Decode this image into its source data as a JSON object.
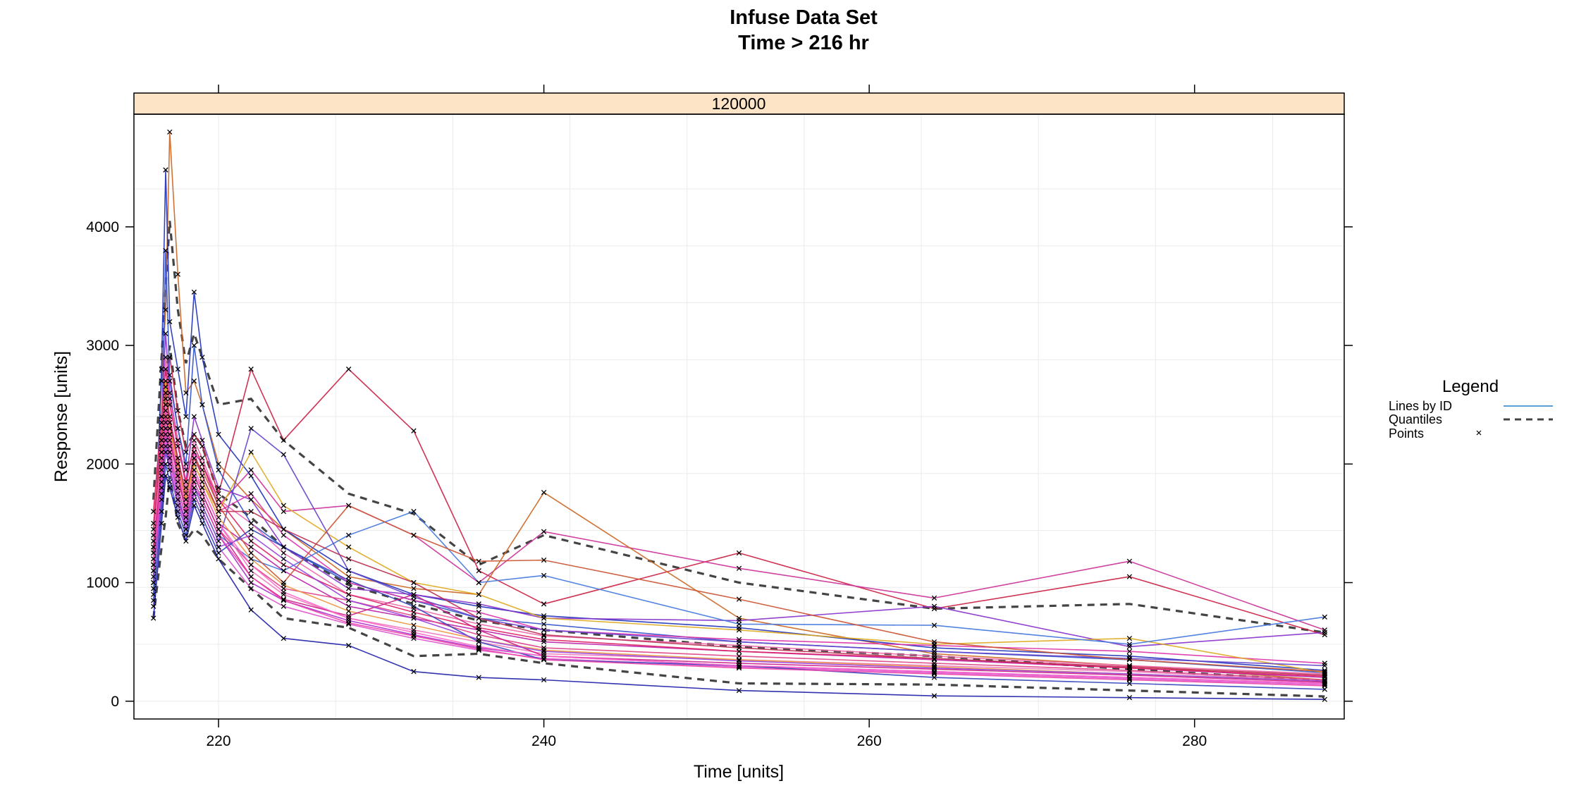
{
  "chart_data": {
    "type": "line",
    "title": "Infuse Data Set",
    "subtitle": "Time > 216 hr",
    "xlabel": "Time [units]",
    "ylabel": "Response [units]",
    "panel_label": "120000",
    "xlim": [
      214.8,
      289.2
    ],
    "ylim": [
      -150,
      4950
    ],
    "x_ticks": [
      220,
      240,
      260,
      280
    ],
    "y_ticks": [
      0,
      1000,
      2000,
      3000,
      4000
    ],
    "grid": true,
    "grid_x": [
      220,
      227.2,
      234.4,
      241.6,
      248.8,
      256,
      263.2,
      270.4,
      277.6,
      284.8
    ],
    "grid_y": [
      0,
      480,
      960,
      1440,
      1920,
      2400,
      2880,
      3360,
      3840,
      4320
    ],
    "legend": {
      "title": "Legend",
      "position": "right",
      "items": [
        {
          "label": "Lines by ID",
          "style": "line",
          "color": "#5aa0d8"
        },
        {
          "label": "Quantiles",
          "style": "dashed",
          "color": "#444444"
        },
        {
          "label": "Points",
          "style": "x",
          "color": "#000000"
        }
      ]
    },
    "x": [
      216,
      216.5,
      216.75,
      217,
      217.5,
      218,
      218.5,
      219,
      220,
      222,
      224,
      228,
      232,
      236,
      240,
      252,
      264,
      276,
      288
    ],
    "quantiles": [
      {
        "name": "upper",
        "values": [
          1700,
          2900,
          3500,
          4050,
          3300,
          2850,
          3100,
          2900,
          2500,
          2550,
          2200,
          1750,
          1580,
          1150,
          1400,
          1000,
          780,
          820,
          580
        ]
      },
      {
        "name": "median",
        "values": [
          1250,
          2300,
          2700,
          3000,
          2450,
          2150,
          2250,
          2150,
          1750,
          1550,
          1300,
          980,
          820,
          680,
          600,
          460,
          380,
          270,
          170
        ]
      },
      {
        "name": "lower",
        "values": [
          700,
          1300,
          1550,
          1900,
          1500,
          1350,
          1450,
          1400,
          1200,
          950,
          700,
          620,
          380,
          400,
          320,
          150,
          140,
          90,
          40
        ]
      }
    ],
    "series": [
      {
        "color": "#cc2244",
        "values": [
          1400,
          2300,
          2600,
          2900,
          2450,
          2100,
          2250,
          2150,
          1750,
          2800,
          2200,
          2800,
          2280,
          1100,
          820,
          1250,
          780,
          1050,
          560
        ]
      },
      {
        "color": "#cc3399",
        "values": [
          1300,
          2100,
          2500,
          2750,
          2300,
          1950,
          2100,
          2000,
          1650,
          1950,
          1600,
          1650,
          1400,
          1000,
          1430,
          1120,
          870,
          1180,
          600
        ]
      },
      {
        "color": "#cc6622",
        "values": [
          1150,
          2700,
          3300,
          4800,
          3600,
          2600,
          2700,
          2500,
          2000,
          1700,
          1450,
          1050,
          950,
          900,
          1760,
          700,
          400,
          300,
          180
        ]
      },
      {
        "color": "#2233bb",
        "values": [
          1000,
          2800,
          4480,
          3200,
          2800,
          2400,
          3450,
          2900,
          2250,
          1900,
          1450,
          1100,
          900,
          800,
          720,
          620,
          450,
          380,
          260
        ]
      },
      {
        "color": "#3355cc",
        "values": [
          900,
          2200,
          3800,
          2700,
          2300,
          2000,
          3000,
          2500,
          1950,
          1500,
          1300,
          1000,
          850,
          700,
          650,
          500,
          420,
          350,
          240
        ]
      },
      {
        "color": "#8833cc",
        "values": [
          1100,
          2400,
          3100,
          2600,
          2200,
          1850,
          2400,
          2200,
          1800,
          1700,
          1300,
          950,
          900,
          820,
          700,
          680,
          800,
          460,
          580
        ]
      },
      {
        "color": "#dd33aa",
        "values": [
          1200,
          2100,
          2650,
          2400,
          2050,
          1700,
          2100,
          1900,
          1600,
          1750,
          1400,
          1000,
          850,
          750,
          600,
          520,
          470,
          420,
          320
        ]
      },
      {
        "color": "#ee66aa",
        "values": [
          1350,
          2350,
          2900,
          2550,
          2200,
          1800,
          2200,
          2050,
          1700,
          1500,
          1250,
          900,
          780,
          650,
          550,
          470,
          380,
          300,
          230
        ]
      },
      {
        "color": "#ddaa22",
        "values": [
          1250,
          2150,
          2700,
          2300,
          1950,
          1650,
          2000,
          1850,
          1600,
          2100,
          1650,
          1300,
          1000,
          900,
          700,
          600,
          480,
          530,
          240
        ]
      },
      {
        "color": "#bb22aa",
        "values": [
          1050,
          2000,
          2500,
          2250,
          1900,
          1600,
          1950,
          1800,
          1500,
          1300,
          1100,
          800,
          700,
          600,
          500,
          420,
          350,
          280,
          200
        ]
      },
      {
        "color": "#4477dd",
        "values": [
          950,
          1900,
          2300,
          2100,
          1800,
          1550,
          1850,
          1700,
          1400,
          1200,
          1100,
          1400,
          1600,
          1000,
          1060,
          650,
          640,
          480,
          710
        ]
      },
      {
        "color": "#dd4488",
        "values": [
          1500,
          2250,
          2600,
          2350,
          2000,
          1700,
          1900,
          1750,
          1450,
          1150,
          950,
          850,
          720,
          560,
          450,
          380,
          320,
          260,
          180
        ]
      },
      {
        "color": "#6644cc",
        "values": [
          800,
          1700,
          2100,
          1950,
          1700,
          1500,
          1800,
          1650,
          1350,
          2300,
          2080,
          1100,
          880,
          700,
          600,
          500,
          420,
          360,
          300
        ]
      },
      {
        "color": "#cc5533",
        "values": [
          1300,
          2050,
          2450,
          2250,
          1950,
          1700,
          2050,
          1950,
          1650,
          1250,
          1000,
          1650,
          1400,
          1180,
          1190,
          860,
          500,
          350,
          250
        ]
      },
      {
        "color": "#ee77bb",
        "values": [
          1200,
          1950,
          2350,
          2150,
          1850,
          1600,
          1900,
          1800,
          1500,
          1100,
          900,
          700,
          600,
          500,
          400,
          350,
          300,
          250,
          170
        ]
      },
      {
        "color": "#aa33cc",
        "values": [
          1150,
          1850,
          2250,
          2050,
          1750,
          1500,
          1800,
          1700,
          1400,
          1000,
          850,
          680,
          560,
          450,
          380,
          300,
          250,
          200,
          150
        ]
      },
      {
        "color": "#dd2266",
        "values": [
          1600,
          2400,
          2800,
          2500,
          2150,
          1850,
          2150,
          2000,
          1700,
          1350,
          1150,
          900,
          750,
          620,
          520,
          420,
          360,
          280,
          210
        ]
      },
      {
        "color": "#2222aa",
        "values": [
          700,
          1500,
          1900,
          1800,
          1550,
          1350,
          1650,
          1500,
          1200,
          770,
          530,
          470,
          250,
          200,
          180,
          90,
          45,
          30,
          15
        ]
      },
      {
        "color": "#dd55cc",
        "values": [
          1100,
          1800,
          2200,
          2000,
          1700,
          1450,
          1750,
          1600,
          1300,
          950,
          800,
          650,
          530,
          430,
          360,
          290,
          240,
          190,
          140
        ]
      },
      {
        "color": "#ee9944",
        "values": [
          1400,
          2200,
          2550,
          2300,
          2000,
          1700,
          2000,
          1850,
          1550,
          1200,
          980,
          760,
          640,
          520,
          430,
          350,
          290,
          230,
          170
        ]
      },
      {
        "color": "#3344bb",
        "values": [
          850,
          1600,
          2000,
          1850,
          1600,
          1400,
          1700,
          1550,
          1250,
          1450,
          1300,
          1020,
          800,
          500,
          350,
          300,
          200,
          150,
          100
        ]
      },
      {
        "color": "#cc2288",
        "values": [
          1250,
          2000,
          2400,
          2200,
          1900,
          1600,
          1900,
          1750,
          1450,
          1050,
          860,
          720,
          900,
          600,
          380,
          320,
          270,
          220,
          160
        ]
      },
      {
        "color": "#9944dd",
        "values": [
          1000,
          1750,
          2150,
          1950,
          1650,
          1450,
          1750,
          1600,
          1300,
          1400,
          1200,
          850,
          700,
          520,
          420,
          340,
          280,
          230,
          170
        ]
      },
      {
        "color": "#ff66cc",
        "values": [
          1350,
          2100,
          2500,
          2250,
          1950,
          1650,
          1950,
          1800,
          1500,
          1150,
          920,
          700,
          580,
          460,
          380,
          300,
          250,
          200,
          150
        ]
      },
      {
        "color": "#bb3355",
        "values": [
          1450,
          2200,
          2600,
          2350,
          2050,
          1750,
          2050,
          1900,
          1600,
          1600,
          1450,
          1200,
          1000,
          700,
          560,
          450,
          360,
          290,
          220
        ]
      },
      {
        "color": "#ee44aa",
        "values": [
          1150,
          1900,
          2300,
          2100,
          1800,
          1550,
          1850,
          1700,
          1400,
          1050,
          850,
          660,
          550,
          440,
          350,
          280,
          230,
          180,
          130
        ]
      }
    ]
  }
}
